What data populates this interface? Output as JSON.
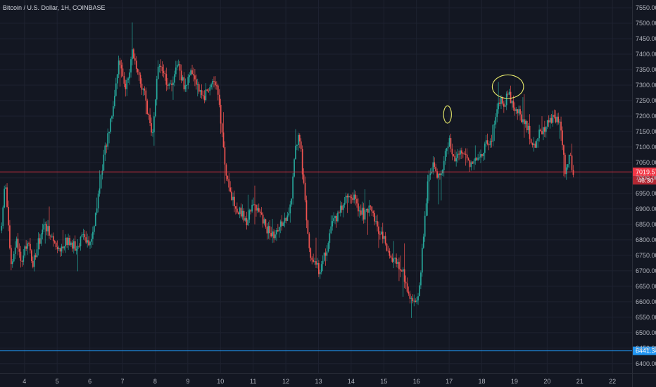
{
  "chart_data": {
    "type": "candlestick",
    "title": "Bitcoin / U.S. Dollar, 1H, COINBASE",
    "ylim": [
      6370,
      7575
    ],
    "y_ticks": [
      6400,
      6450,
      6500,
      6550,
      6600,
      6650,
      6700,
      6750,
      6800,
      6850,
      6900,
      6950,
      7000,
      7050,
      7100,
      7150,
      7200,
      7250,
      7300,
      7350,
      7400,
      7450,
      7500,
      7550
    ],
    "y_tick_labels": [
      "6400.00",
      "6450.00",
      "6500.00",
      "6550.00",
      "6600.00",
      "6650.00",
      "6700.00",
      "6750.00",
      "6800.00",
      "6850.00",
      "6900.00",
      "6950.00",
      "7000.00",
      "7050.00",
      "7100.00",
      "7150.00",
      "7200.00",
      "7250.00",
      "7300.00",
      "7350.00",
      "7400.00",
      "7450.00",
      "7500.00",
      "7550.00"
    ],
    "x_labels": [
      "4",
      "5",
      "6",
      "7",
      "8",
      "9",
      "10",
      "11",
      "12",
      "13",
      "14",
      "15",
      "16",
      "17",
      "18",
      "19",
      "20",
      "21",
      "22"
    ],
    "x_day_range": [
      3.25,
      22.6
    ],
    "price_anchors": [
      [
        3.3,
        6830
      ],
      [
        3.4,
        7000
      ],
      [
        3.5,
        6860
      ],
      [
        3.6,
        6700
      ],
      [
        3.75,
        6800
      ],
      [
        3.9,
        6720
      ],
      [
        4.1,
        6800
      ],
      [
        4.25,
        6720
      ],
      [
        4.4,
        6780
      ],
      [
        4.6,
        6850
      ],
      [
        4.8,
        6820
      ],
      [
        5.0,
        6760
      ],
      [
        5.3,
        6800
      ],
      [
        5.6,
        6770
      ],
      [
        5.8,
        6820
      ],
      [
        6.0,
        6790
      ],
      [
        6.15,
        6860
      ],
      [
        6.3,
        6980
      ],
      [
        6.5,
        7110
      ],
      [
        6.7,
        7230
      ],
      [
        6.9,
        7380
      ],
      [
        7.1,
        7290
      ],
      [
        7.3,
        7400
      ],
      [
        7.5,
        7320
      ],
      [
        7.7,
        7260
      ],
      [
        7.9,
        7120
      ],
      [
        8.1,
        7370
      ],
      [
        8.3,
        7320
      ],
      [
        8.5,
        7290
      ],
      [
        8.7,
        7380
      ],
      [
        8.9,
        7280
      ],
      [
        9.1,
        7340
      ],
      [
        9.3,
        7300
      ],
      [
        9.5,
        7260
      ],
      [
        9.7,
        7310
      ],
      [
        9.9,
        7280
      ],
      [
        10.0,
        7190
      ],
      [
        10.2,
        6990
      ],
      [
        10.35,
        6930
      ],
      [
        10.6,
        6890
      ],
      [
        10.8,
        6860
      ],
      [
        11.0,
        6920
      ],
      [
        11.2,
        6880
      ],
      [
        11.4,
        6840
      ],
      [
        11.6,
        6810
      ],
      [
        11.8,
        6850
      ],
      [
        12.0,
        6870
      ],
      [
        12.1,
        6890
      ],
      [
        12.2,
        6970
      ],
      [
        12.3,
        7100
      ],
      [
        12.4,
        7150
      ],
      [
        12.5,
        7040
      ],
      [
        12.6,
        6900
      ],
      [
        12.75,
        6750
      ],
      [
        12.9,
        6720
      ],
      [
        13.05,
        6700
      ],
      [
        13.2,
        6750
      ],
      [
        13.4,
        6840
      ],
      [
        13.6,
        6880
      ],
      [
        13.8,
        6920
      ],
      [
        14.0,
        6950
      ],
      [
        14.2,
        6910
      ],
      [
        14.4,
        6880
      ],
      [
        14.6,
        6900
      ],
      [
        14.8,
        6840
      ],
      [
        15.0,
        6800
      ],
      [
        15.2,
        6740
      ],
      [
        15.4,
        6720
      ],
      [
        15.6,
        6690
      ],
      [
        15.8,
        6620
      ],
      [
        15.95,
        6600
      ],
      [
        16.1,
        6650
      ],
      [
        16.2,
        6800
      ],
      [
        16.35,
        7000
      ],
      [
        16.5,
        7040
      ],
      [
        16.7,
        7000
      ],
      [
        16.9,
        7080
      ],
      [
        17.0,
        7130
      ],
      [
        17.15,
        7060
      ],
      [
        17.3,
        7090
      ],
      [
        17.6,
        7050
      ],
      [
        17.9,
        7070
      ],
      [
        18.1,
        7100
      ],
      [
        18.3,
        7130
      ],
      [
        18.5,
        7250
      ],
      [
        18.7,
        7240
      ],
      [
        18.8,
        7270
      ],
      [
        19.0,
        7230
      ],
      [
        19.2,
        7200
      ],
      [
        19.4,
        7160
      ],
      [
        19.6,
        7100
      ],
      [
        19.8,
        7150
      ],
      [
        20.0,
        7170
      ],
      [
        20.2,
        7190
      ],
      [
        20.35,
        7180
      ],
      [
        20.45,
        7140
      ],
      [
        20.55,
        7000
      ],
      [
        20.6,
        7030
      ],
      [
        20.7,
        7080
      ],
      [
        20.78,
        7020
      ]
    ],
    "current_price": 7019.57,
    "current_price_label": "7019.57",
    "countdown_label": "46:30",
    "horizontal_line_price": 6441.34,
    "horizontal_line_label": "6441.34",
    "colors": {
      "background": "#131722",
      "grid": "#1e2230",
      "up": "#26a69a",
      "down": "#ef5350",
      "price_line": "#f23645",
      "horizontal_line": "#2196f3",
      "annotation": "#e6e86a",
      "axis_text": "#b2b5be"
    },
    "annotations": [
      {
        "type": "ellipse",
        "day": 16.95,
        "price": 7205,
        "rx_days": 0.12,
        "ry_price": 28
      },
      {
        "type": "ellipse",
        "day": 18.8,
        "price": 7295,
        "rx_days": 0.48,
        "ry_price": 38
      }
    ],
    "grid": true,
    "legend": "none"
  }
}
